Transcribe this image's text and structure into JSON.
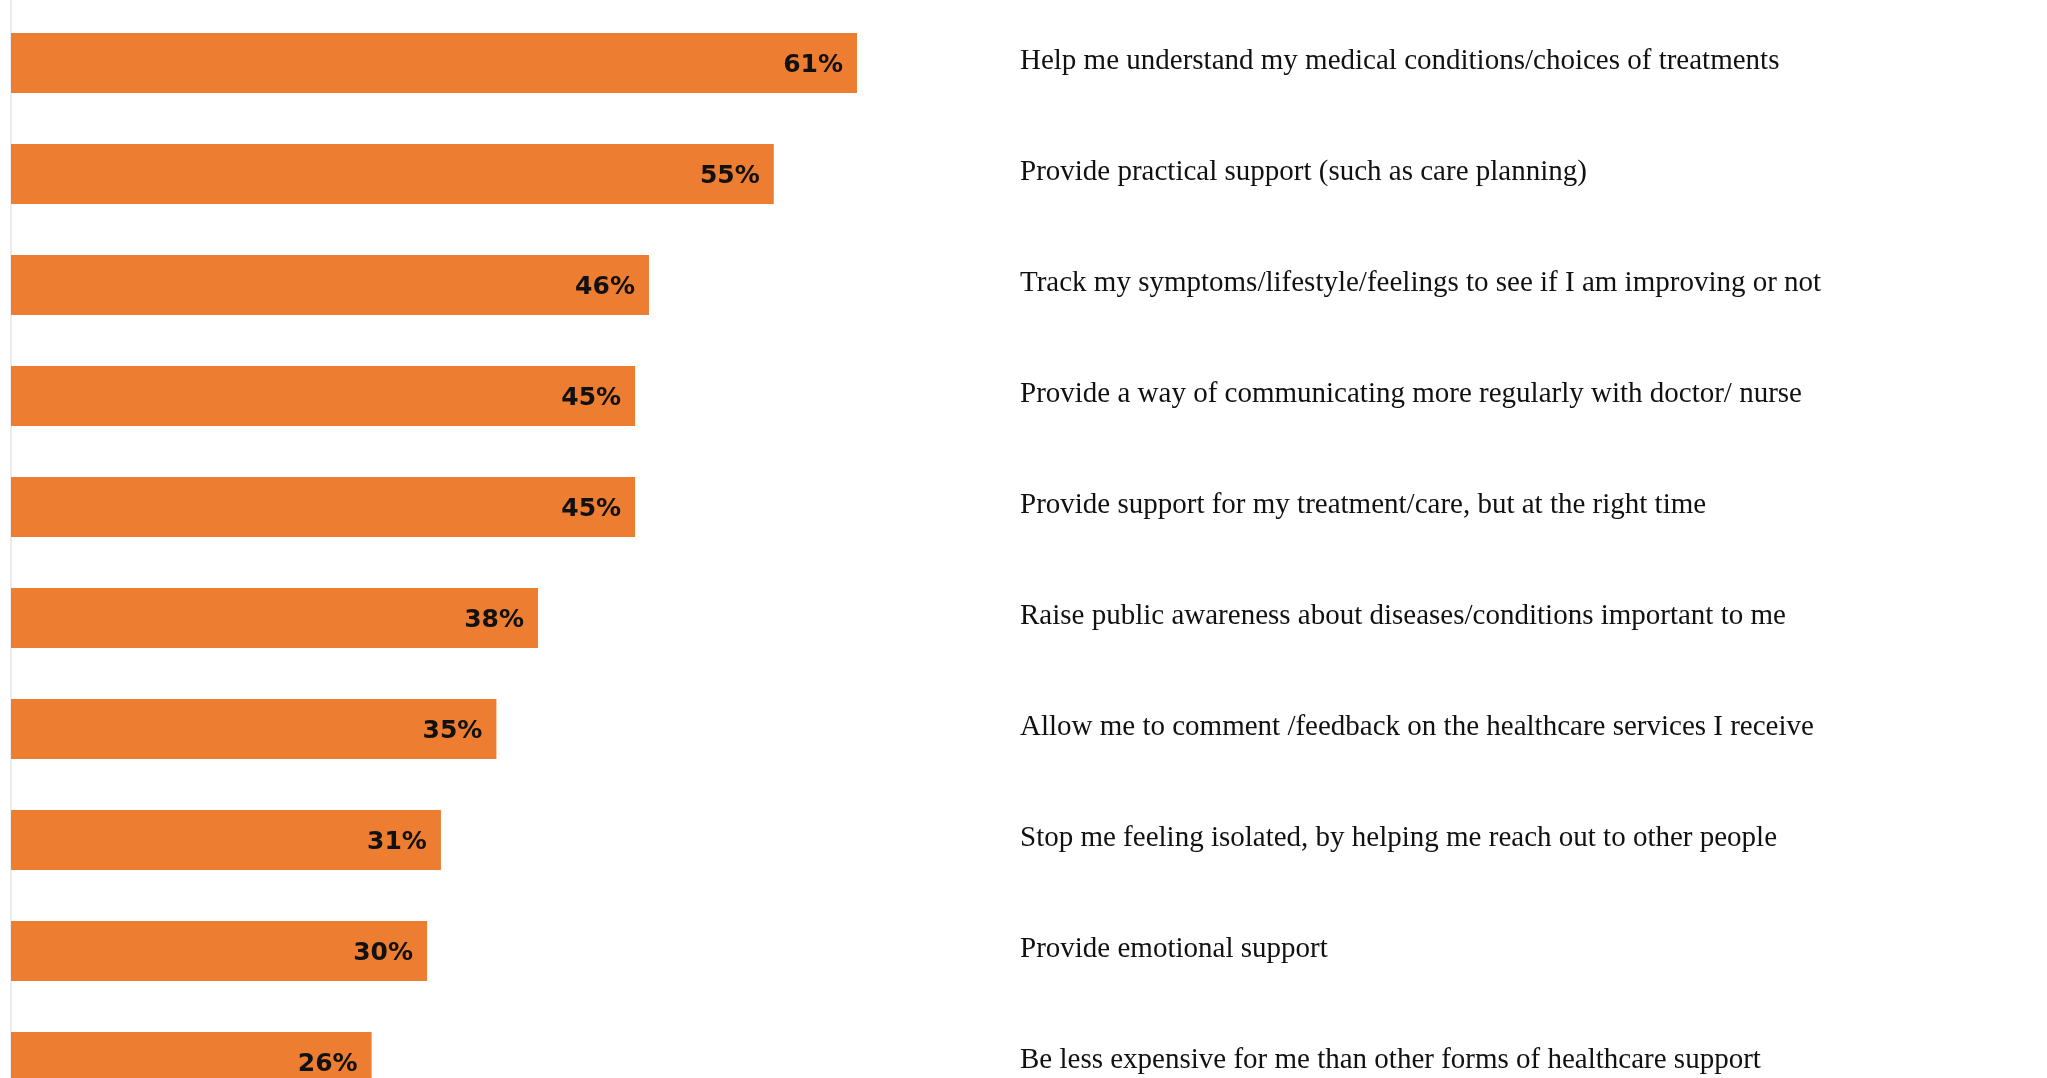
{
  "chart_data": {
    "type": "bar",
    "orientation": "horizontal",
    "categories": [
      "Help me understand my medical conditions/choices of treatments",
      "Provide practical support (such as care planning)",
      "Track my symptoms/lifestyle/feelings to see if I am improving or not",
      "Provide a way of communicating more regularly with doctor/ nurse",
      "Provide support for my treatment/care, but at the right time",
      "Raise public awareness about diseases/conditions important to me",
      "Allow me to comment /feedback on the healthcare services I receive",
      "Stop me feeling isolated, by helping me reach out to other people",
      "Provide emotional support",
      "Be less expensive for me than other forms of healthcare support"
    ],
    "values": [
      61,
      55,
      46,
      45,
      45,
      38,
      35,
      31,
      30,
      26
    ],
    "value_labels": [
      "61%",
      "55%",
      "46%",
      "45%",
      "45%",
      "38%",
      "35%",
      "31%",
      "30%",
      "26%"
    ],
    "color": "#ed7d31"
  }
}
